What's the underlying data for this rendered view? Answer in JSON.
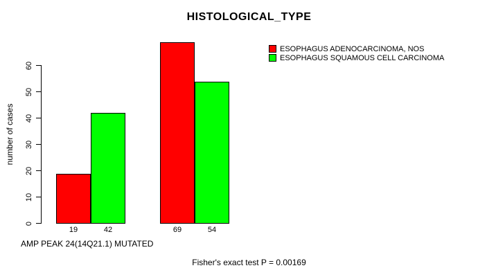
{
  "chart_data": {
    "type": "bar",
    "title": "HISTOLOGICAL_TYPE",
    "ylabel": "number of cases",
    "xlabel": "AMP PEAK 24(14Q21.1) MUTATED",
    "annotation": "Fisher's exact test P = 0.00169",
    "series": [
      {
        "name": "ESOPHAGUS ADENOCARCINOMA, NOS",
        "color": "#ff0000",
        "values": [
          19,
          69
        ]
      },
      {
        "name": "ESOPHAGUS SQUAMOUS CELL CARCINOMA",
        "color": "#00ff00",
        "values": [
          42,
          54
        ]
      }
    ],
    "bar_value_labels": [
      "19",
      "42",
      "69",
      "54"
    ],
    "yticks": [
      0,
      10,
      20,
      30,
      40,
      50,
      60
    ],
    "ylim": [
      0,
      69
    ],
    "grid": false,
    "legend_position": "top-right",
    "bar_border_color": "#000000",
    "background_color": "#ffffff"
  }
}
